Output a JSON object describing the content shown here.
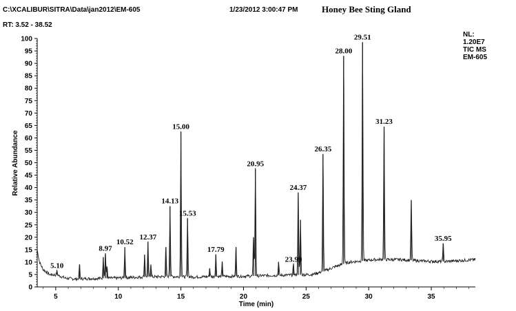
{
  "header": {
    "file_path": "C:\\XCALIBUR\\SITRA\\Data\\jan2012\\EM-605",
    "datetime": "1/23/2012 3:00:47 PM",
    "title": "Honey Bee Sting Gland",
    "rt_range": "RT:  3.52 -  38.52"
  },
  "nl_info": [
    "NL:",
    "1.20E7",
    "TIC  MS",
    "EM-605"
  ],
  "chart_data": {
    "type": "line",
    "title": "Honey Bee Sting Gland",
    "xlabel": "Time (min)",
    "ylabel": "Relative Abundance",
    "xlim": [
      3.52,
      38.52
    ],
    "ylim": [
      0,
      100
    ],
    "x_ticks": [
      5,
      10,
      15,
      20,
      25,
      30,
      35
    ],
    "y_ticks": [
      0,
      5,
      10,
      15,
      20,
      25,
      30,
      35,
      40,
      45,
      50,
      55,
      60,
      65,
      70,
      75,
      80,
      85,
      90,
      95,
      100
    ],
    "baseline": [
      [
        3.52,
        15
      ],
      [
        3.7,
        10
      ],
      [
        4.0,
        7
      ],
      [
        4.5,
        5
      ],
      [
        5.1,
        4.8
      ],
      [
        5.8,
        3.5
      ],
      [
        6.5,
        3.2
      ],
      [
        8.0,
        3.4
      ],
      [
        10.0,
        3.6
      ],
      [
        12.0,
        4
      ],
      [
        14.0,
        4.2
      ],
      [
        16.0,
        4
      ],
      [
        18.0,
        4.2
      ],
      [
        20.0,
        4.3
      ],
      [
        22.0,
        4.6
      ],
      [
        24.0,
        4.8
      ],
      [
        25.5,
        5
      ],
      [
        26.5,
        6.5
      ],
      [
        27.5,
        8.5
      ],
      [
        28.5,
        10
      ],
      [
        29.5,
        10.5
      ],
      [
        30.5,
        11
      ],
      [
        31.5,
        11
      ],
      [
        32.5,
        11
      ],
      [
        34.0,
        10.5
      ],
      [
        35.0,
        10.3
      ],
      [
        36.0,
        10.2
      ],
      [
        37.0,
        10.5
      ],
      [
        38.52,
        11
      ]
    ],
    "peaks": [
      {
        "rt": 5.1,
        "abundance": 6.5,
        "label": "5.10"
      },
      {
        "rt": 6.9,
        "abundance": 9
      },
      {
        "rt": 8.8,
        "abundance": 12
      },
      {
        "rt": 8.97,
        "abundance": 13.5,
        "label": "8.97"
      },
      {
        "rt": 9.1,
        "abundance": 8
      },
      {
        "rt": 10.52,
        "abundance": 16,
        "label": "10.52"
      },
      {
        "rt": 12.1,
        "abundance": 13
      },
      {
        "rt": 12.37,
        "abundance": 18,
        "label": "12.37"
      },
      {
        "rt": 12.6,
        "abundance": 9
      },
      {
        "rt": 13.8,
        "abundance": 16
      },
      {
        "rt": 14.13,
        "abundance": 32.5,
        "label": "14.13"
      },
      {
        "rt": 15.0,
        "abundance": 62.5,
        "label": "15.00"
      },
      {
        "rt": 15.53,
        "abundance": 27.5,
        "label": "15.53"
      },
      {
        "rt": 17.3,
        "abundance": 7.5
      },
      {
        "rt": 17.79,
        "abundance": 13,
        "label": "17.79"
      },
      {
        "rt": 18.3,
        "abundance": 10
      },
      {
        "rt": 19.4,
        "abundance": 16
      },
      {
        "rt": 20.8,
        "abundance": 20
      },
      {
        "rt": 20.95,
        "abundance": 47.5,
        "label": "20.95"
      },
      {
        "rt": 22.8,
        "abundance": 10
      },
      {
        "rt": 23.99,
        "abundance": 9,
        "label": "23.99"
      },
      {
        "rt": 24.37,
        "abundance": 38,
        "label": "24.37"
      },
      {
        "rt": 24.55,
        "abundance": 27
      },
      {
        "rt": 26.35,
        "abundance": 53.5,
        "label": "26.35"
      },
      {
        "rt": 28.0,
        "abundance": 93,
        "label": "28.00"
      },
      {
        "rt": 29.51,
        "abundance": 98.5,
        "label": "29.51"
      },
      {
        "rt": 31.23,
        "abundance": 64.5,
        "label": "31.23"
      },
      {
        "rt": 33.4,
        "abundance": 35
      },
      {
        "rt": 35.95,
        "abundance": 17.5,
        "label": "35.95"
      }
    ]
  }
}
